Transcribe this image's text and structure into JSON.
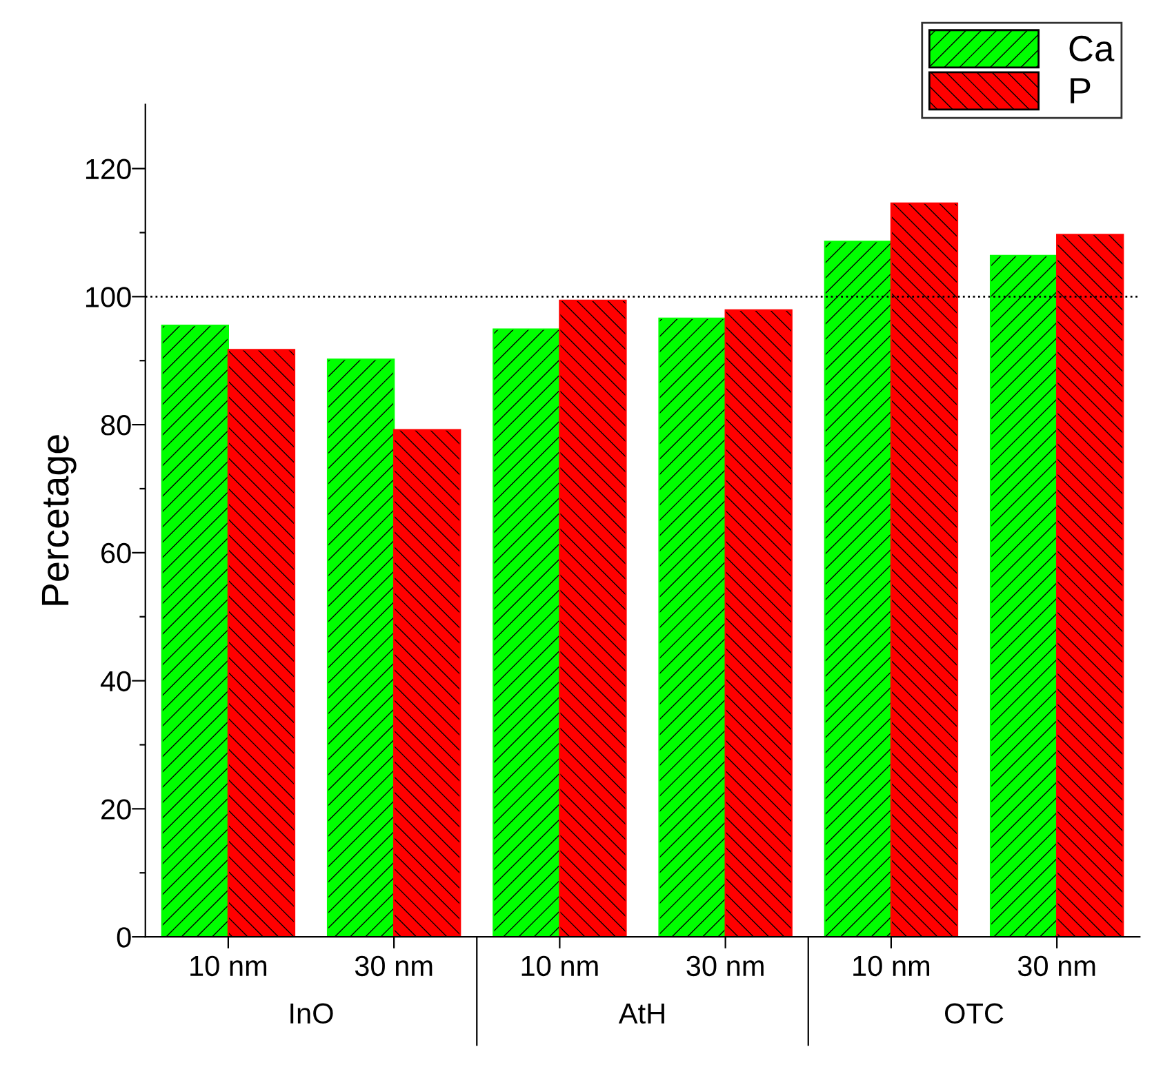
{
  "chart_data": {
    "type": "bar",
    "ylabel": "Percetage",
    "categories": [
      "10 nm",
      "30 nm",
      "10 nm",
      "30 nm",
      "10 nm",
      "30 nm"
    ],
    "series": [
      {
        "name": "Ca",
        "color": "#00ff00",
        "values": [
          95.5,
          90.2,
          94.9,
          96.6,
          108.6,
          106.4
        ]
      },
      {
        "name": "P",
        "color": "#ff0000",
        "values": [
          91.7,
          79.2,
          99.4,
          97.9,
          114.6,
          109.7
        ]
      }
    ],
    "annotations": [
      "InO",
      "AtH",
      "OTC"
    ],
    "ylim": [
      0,
      130
    ],
    "yticks": [
      0,
      {
        "value": 10,
        "label": null
      },
      20,
      {
        "value": 30,
        "label": null
      },
      40,
      {
        "value": 50,
        "label": null
      },
      60,
      {
        "value": 70,
        "label": null
      },
      80,
      {
        "value": 90,
        "label": null
      },
      100,
      {
        "value": 110,
        "label": null
      },
      120
    ],
    "ref_lines": [
      {
        "axis": "y",
        "value": 100,
        "color": "#000000",
        "line_style": "dotted"
      }
    ],
    "grid": false,
    "legend": "top right"
  }
}
